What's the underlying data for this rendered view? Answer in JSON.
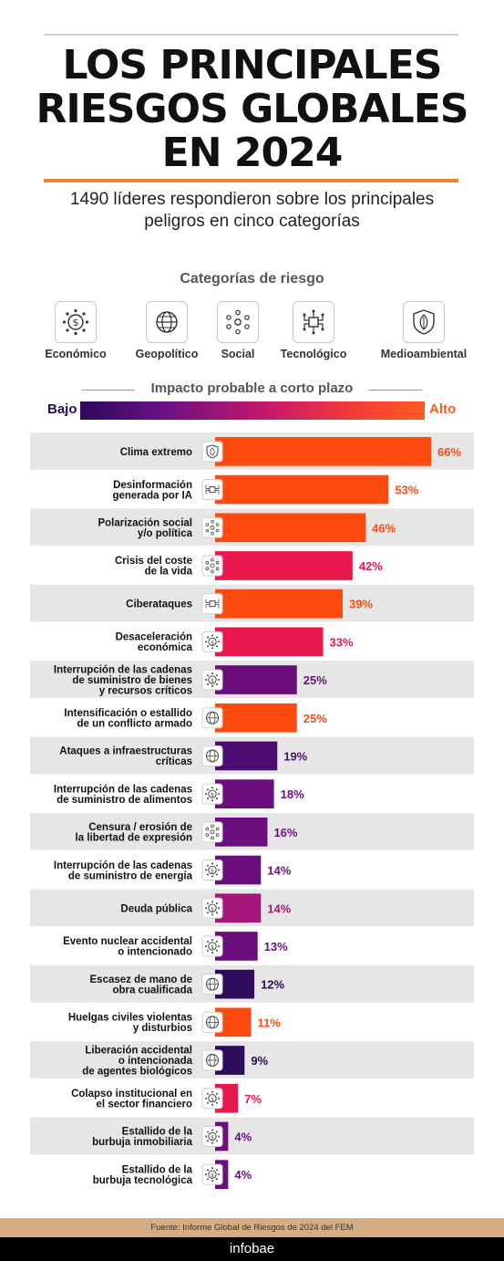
{
  "header": {
    "title_line1": "LOS PRINCIPALES",
    "title_line2": "RIESGOS GLOBALES",
    "title_line3": "EN 2024",
    "subtitle_line1": "1490 líderes respondieron sobre los principales",
    "subtitle_line2": "peligros en cinco categorías"
  },
  "categories_section": {
    "title": "Categorías de riesgo",
    "items": [
      {
        "label": "Económico",
        "icon": "dollar-coin-icon"
      },
      {
        "label": "Geopolítico",
        "icon": "globe-icon"
      },
      {
        "label": "Social",
        "icon": "people-network-icon"
      },
      {
        "label": "Tecnológico",
        "icon": "circuit-icon"
      },
      {
        "label": "Medioambiental",
        "icon": "leaf-shield-icon"
      }
    ]
  },
  "scale": {
    "title": "Impacto probable a corto plazo",
    "low_label": "Bajo",
    "high_label": "Alto"
  },
  "colors": {
    "orange": "#ff4a0f",
    "red": "#e8174c",
    "magenta": "#a5187a",
    "purple": "#6b0f7e",
    "dark_purple": "#2e0c5c",
    "row_shade": "#e6e6e6"
  },
  "chart_data": {
    "type": "bar",
    "orientation": "horizontal",
    "categories": [
      "Clima extremo",
      "Desinformación generada por IA",
      "Polarización social y/o política",
      "Crisis del coste de la vida",
      "Ciberataques",
      "Desaceleración económica",
      "Interrupción de las cadenas de suministro de bienes y recursos críticos",
      "Intensificación o estallido de un conflicto armado",
      "Ataques a infraestructuras críticas",
      "Interrupción de las cadenas de suministro de alimentos",
      "Censura / erosión de la libertad de expresión",
      "Interrupción de las cadenas de suministro de energía",
      "Deuda pública",
      "Evento nuclear accidental o intencionado",
      "Escasez de mano de obra cualificada",
      "Huelgas civiles violentas y disturbios",
      "Liberación accidental o intencionada de agentes biológicos",
      "Colapso institucional en el sector financiero",
      "Estallido de la burbuja inmobiliaria",
      "Estallido de la burbuja tecnológica"
    ],
    "label_lines": [
      [
        "Clima extremo"
      ],
      [
        "Desinformación",
        "generada por IA"
      ],
      [
        "Polarización social",
        "y/o política"
      ],
      [
        "Crisis del coste",
        "de la vida"
      ],
      [
        "Ciberataques"
      ],
      [
        "Desaceleración",
        "económica"
      ],
      [
        "Interrupción de las cadenas",
        "de suministro de bienes",
        "y recursos críticos"
      ],
      [
        "Intensificación o estallido",
        "de un conflicto armado"
      ],
      [
        "Ataques a infraestructuras",
        "críticas"
      ],
      [
        "Interrupción de las cadenas",
        "de suministro de alimentos"
      ],
      [
        "Censura / erosión de",
        "la libertad de expresión"
      ],
      [
        "Interrupción de las cadenas",
        "de suministro de energía"
      ],
      [
        "Deuda pública"
      ],
      [
        "Evento nuclear accidental",
        "o intencionado"
      ],
      [
        "Escasez de mano de",
        "obra cualificada"
      ],
      [
        "Huelgas civiles violentas",
        "y disturbios"
      ],
      [
        "Liberación accidental",
        "o intencionada",
        "de agentes biológicos"
      ],
      [
        "Colapso institucional en",
        "el sector financiero"
      ],
      [
        "Estallido de la",
        "burbuja inmobiliaria"
      ],
      [
        "Estallido de la",
        "burbuja tecnológica"
      ]
    ],
    "values": [
      66,
      53,
      46,
      42,
      39,
      33,
      25,
      25,
      19,
      18,
      16,
      14,
      14,
      13,
      12,
      11,
      9,
      7,
      4,
      4
    ],
    "value_labels": [
      "66%",
      "53%",
      "46%",
      "42%",
      "39%",
      "33%",
      "25%",
      "25%",
      "19%",
      "18%",
      "16%",
      "14%",
      "14%",
      "13%",
      "12%",
      "11%",
      "9%",
      "7%",
      "4%",
      "4%"
    ],
    "risk_category": [
      "Medioambiental",
      "Tecnológico",
      "Social",
      "Social",
      "Tecnológico",
      "Económico",
      "Económico",
      "Geopolítico",
      "Geopolítico",
      "Económico",
      "Social",
      "Económico",
      "Económico",
      "Económico",
      "Geopolítico",
      "Geopolítico",
      "Geopolítico",
      "Económico",
      "Económico",
      "Económico"
    ],
    "bar_colors": [
      "#ff4a0f",
      "#ff4a0f",
      "#ff4a0f",
      "#e8174c",
      "#ff4a0f",
      "#e8174c",
      "#6b0f7e",
      "#ff4a0f",
      "#4a0c6e",
      "#6b0f7e",
      "#6b0f7e",
      "#6b0f7e",
      "#a5187a",
      "#6b0f7e",
      "#2e0c5c",
      "#ff4a0f",
      "#2e0c5c",
      "#e8174c",
      "#6b0f7e",
      "#6b0f7e"
    ],
    "label_colors": [
      "#ff4a0f",
      "#ff4a0f",
      "#ff4a0f",
      "#e8174c",
      "#ff4a0f",
      "#e8174c",
      "#6b0f7e",
      "#ff4a0f",
      "#4a0c6e",
      "#6b0f7e",
      "#6b0f7e",
      "#6b0f7e",
      "#a5187a",
      "#6b0f7e",
      "#2e0c5c",
      "#ff4a0f",
      "#2e0c5c",
      "#e8174c",
      "#6b0f7e",
      "#6b0f7e"
    ],
    "xlim": [
      0,
      66
    ],
    "shaded_rows": [
      true,
      false,
      true,
      false,
      true,
      false,
      true,
      false,
      true,
      false,
      true,
      false,
      true,
      false,
      true,
      false,
      true,
      false,
      true,
      false
    ]
  },
  "footer": {
    "source": "Fuente: Informe Global de Riesgos de 2024 del FEM",
    "brand": "infobae"
  }
}
